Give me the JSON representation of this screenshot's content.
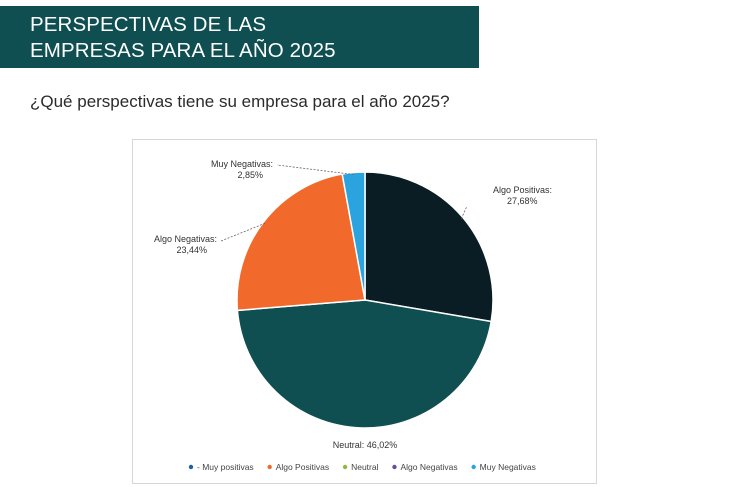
{
  "banner": {
    "line1": "PERSPECTIVAS DE LAS",
    "line2": "EMPRESAS PARA EL AÑO 2025"
  },
  "question": "¿Qué perspectivas tiene su empresa para el año 2025?",
  "chart_data": {
    "type": "pie",
    "slices": [
      {
        "label": "Algo Positivas",
        "value": 27.68,
        "value_label": "27,68%",
        "color": "#0b1d24"
      },
      {
        "label": "Neutral",
        "value": 46.02,
        "value_label": "46,02%",
        "color": "#0f4e51"
      },
      {
        "label": "Algo Negativas",
        "value": 23.44,
        "value_label": "23,44%",
        "color": "#f26a2b"
      },
      {
        "label": "Muy Negativas",
        "value": 2.85,
        "value_label": "2,85%",
        "color": "#2aa3de"
      }
    ],
    "legend": {
      "position": "bottom",
      "items": [
        {
          "label": "- Muy positivas",
          "color": "#1f5fa8"
        },
        {
          "label": "Algo Positivas",
          "color": "#f26a2b"
        },
        {
          "label": "Neutral",
          "color": "#8dbb3a"
        },
        {
          "label": "Algo Negativas",
          "color": "#6a4c9c"
        },
        {
          "label": "Muy Negativas",
          "color": "#2aa3de"
        }
      ]
    }
  }
}
